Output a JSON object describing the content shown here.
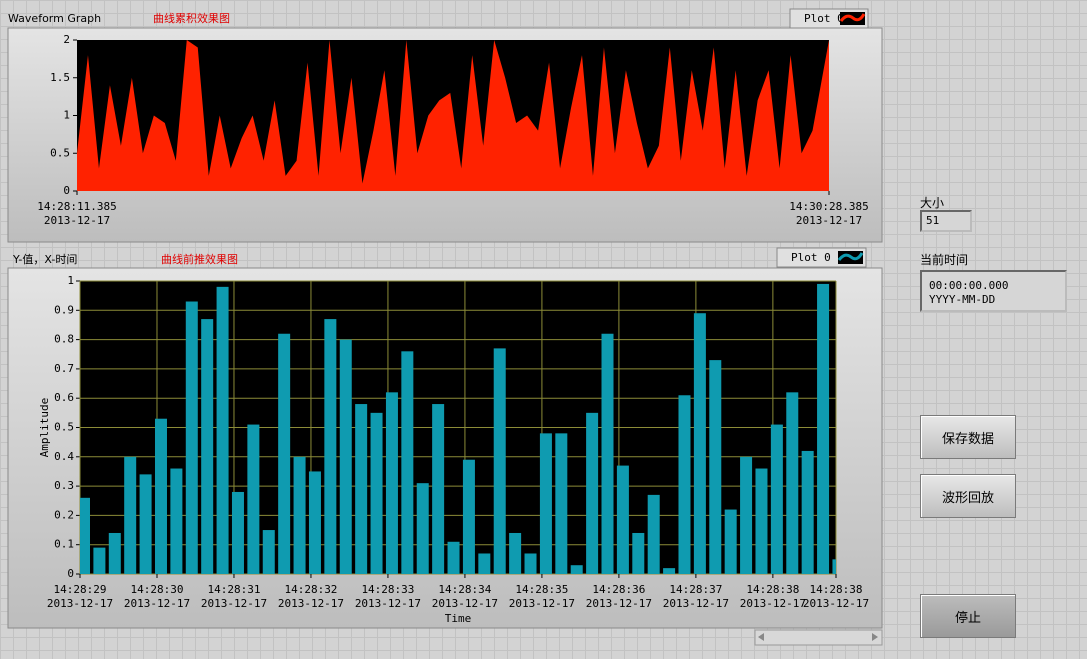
{
  "chart_data": [
    {
      "type": "area",
      "title": "Waveform Graph",
      "subtitle": "曲线累积效果图",
      "background": "#000000",
      "series": [
        {
          "name": "Plot 0",
          "color": "#ff2200",
          "x": [
            52091.385,
            52093.385,
            52095.385,
            52097.385,
            52099.385,
            52101.385,
            52103.385,
            52105.385,
            52107.385,
            52109.385,
            52111.385,
            52113.385,
            52115.385,
            52117.385,
            52119.385,
            52121.385,
            52123.385,
            52125.385,
            52127.385,
            52129.385,
            52131.385,
            52133.385,
            52135.385,
            52137.385,
            52139.385,
            52141.385,
            52143.385,
            52145.385,
            52147.385,
            52149.385,
            52151.385,
            52153.385,
            52155.385,
            52157.385,
            52159.385,
            52161.385,
            52163.385,
            52165.385,
            52167.385,
            52169.385,
            52171.385,
            52173.385,
            52175.385,
            52177.385,
            52179.385,
            52181.385,
            52183.385,
            52185.385,
            52187.385,
            52189.385,
            52191.385,
            52193.385,
            52195.385,
            52197.385,
            52199.385,
            52201.385,
            52203.385,
            52205.385,
            52207.385,
            52209.385,
            52211.385,
            52213.385,
            52215.385,
            52217.385,
            52219.385,
            52221.385,
            52223.385,
            52225.385,
            52228.385
          ],
          "values": [
            0.5,
            1.8,
            0.3,
            1.4,
            0.6,
            1.5,
            0.5,
            1.0,
            0.9,
            0.4,
            2.0,
            1.9,
            0.2,
            1.0,
            0.3,
            0.7,
            1.0,
            0.4,
            1.2,
            0.2,
            0.4,
            1.7,
            0.2,
            2.0,
            0.5,
            1.5,
            0.1,
            0.8,
            1.6,
            0.2,
            2.0,
            0.5,
            1.0,
            1.2,
            1.3,
            0.3,
            1.8,
            0.6,
            2.0,
            1.5,
            0.9,
            1.0,
            0.8,
            1.7,
            0.3,
            1.1,
            1.8,
            0.2,
            1.9,
            0.5,
            1.6,
            0.9,
            0.3,
            0.6,
            1.9,
            0.4,
            1.6,
            0.8,
            1.9,
            0.3,
            1.6,
            0.2,
            1.2,
            1.6,
            0.3,
            1.8,
            0.5,
            0.8,
            2.0
          ]
        }
      ],
      "xlim": [
        52091.385,
        52228.385
      ],
      "xticks": [
        {
          "value": 52091.385,
          "label": "14:28:11.385",
          "date": "2013-12-17"
        },
        {
          "value": 52228.385,
          "label": "14:30:28.385",
          "date": "2013-12-17"
        }
      ],
      "ylim": [
        0,
        2
      ],
      "yticks": [
        0,
        0.5,
        1,
        1.5,
        2
      ],
      "grid": false
    },
    {
      "type": "bar",
      "title": "Y-值，X-时间",
      "subtitle": "曲线前推效果图",
      "xlabel": "Time",
      "ylabel": "Amplitude",
      "background": "#000000",
      "grid_color": "#8c8c38",
      "series": [
        {
          "name": "Plot 0",
          "color": "#0f9bb0",
          "x": [
            52109,
            52109.2,
            52109.4,
            52109.6,
            52109.8,
            52110,
            52110.2,
            52110.4,
            52110.6,
            52110.8,
            52111,
            52111.2,
            52111.4,
            52111.6,
            52111.8,
            52112,
            52112.2,
            52112.4,
            52112.6,
            52112.8,
            52113,
            52113.2,
            52113.4,
            52113.6,
            52113.8,
            52114,
            52114.2,
            52114.4,
            52114.6,
            52114.8,
            52115,
            52115.2,
            52115.4,
            52115.6,
            52115.8,
            52116,
            52116.2,
            52116.4,
            52116.6,
            52116.8,
            52117,
            52117.2,
            52117.4,
            52117.6,
            52117.8,
            52118,
            52118.2,
            52118.4,
            52118.6,
            52118.8
          ],
          "values": [
            0.26,
            0.09,
            0.14,
            0.4,
            0.34,
            0.53,
            0.36,
            0.93,
            0.87,
            0.98,
            0.28,
            0.51,
            0.15,
            0.82,
            0.4,
            0.35,
            0.87,
            0.8,
            0.58,
            0.55,
            0.62,
            0.76,
            0.31,
            0.58,
            0.11,
            0.39,
            0.07,
            0.77,
            0.14,
            0.07,
            0.48,
            0.48,
            0.03,
            0.55,
            0.82,
            0.37,
            0.14,
            0.27,
            0.02,
            0.61,
            0.89,
            0.73,
            0.22,
            0.4,
            0.36,
            0.51,
            0.62,
            0.42,
            0.99,
            0.05
          ]
        }
      ],
      "xlim": [
        52109,
        52118.82
      ],
      "xticks": [
        {
          "value": 52109,
          "label": "14:28:29",
          "date": "2013-12-17"
        },
        {
          "value": 52110,
          "label": "14:28:30",
          "date": "2013-12-17"
        },
        {
          "value": 52111,
          "label": "14:28:31",
          "date": "2013-12-17"
        },
        {
          "value": 52112,
          "label": "14:28:32",
          "date": "2013-12-17"
        },
        {
          "value": 52113,
          "label": "14:28:33",
          "date": "2013-12-17"
        },
        {
          "value": 52114,
          "label": "14:28:34",
          "date": "2013-12-17"
        },
        {
          "value": 52115,
          "label": "14:28:35",
          "date": "2013-12-17"
        },
        {
          "value": 52116,
          "label": "14:28:36",
          "date": "2013-12-17"
        },
        {
          "value": 52117,
          "label": "14:28:37",
          "date": "2013-12-17"
        },
        {
          "value": 52118,
          "label": "14:28:38",
          "date": "2013-12-17"
        },
        {
          "value": 52118.82,
          "label": "14:28:38",
          "date": "2013-12-17"
        }
      ],
      "ylim": [
        0,
        1
      ],
      "yticks": [
        0,
        0.1,
        0.2,
        0.3,
        0.4,
        0.5,
        0.6,
        0.7,
        0.8,
        0.9,
        1
      ],
      "grid": true
    }
  ],
  "controls": {
    "size_label": "大小",
    "size_value": "51",
    "time_label": "当前时间",
    "time_value": "00:00:00.000",
    "date_value": "YYYY-MM-DD",
    "buttons": [
      "保存数据",
      "波形回放",
      "停止"
    ]
  }
}
